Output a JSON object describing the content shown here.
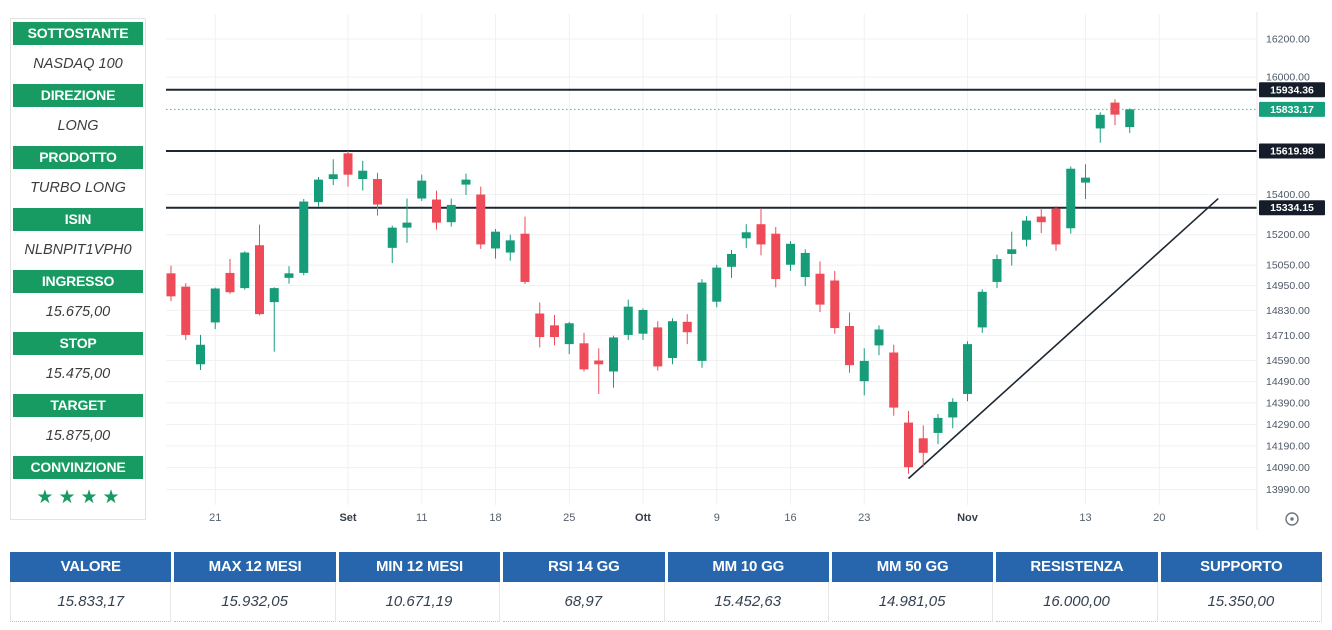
{
  "sidebar": {
    "rows": [
      {
        "label": "SOTTOSTANTE",
        "value": "NASDAQ 100"
      },
      {
        "label": "DIREZIONE",
        "value": "LONG"
      },
      {
        "label": "PRODOTTO",
        "value": "TURBO LONG"
      },
      {
        "label": "ISIN",
        "value": "NLBNPIT1VPH0"
      },
      {
        "label": "INGRESSO",
        "value": "15.675,00"
      },
      {
        "label": "STOP",
        "value": "15.475,00"
      },
      {
        "label": "TARGET",
        "value": "15.875,00"
      },
      {
        "label": "CONVINZIONE",
        "value": "★★★★",
        "type": "stars"
      }
    ]
  },
  "chart_data": {
    "type": "candlestick",
    "symbol": "NASDAQ 100",
    "scale": "log",
    "ylim": [
      13940,
      16250
    ],
    "grid": true,
    "ohlc": [
      [
        15010,
        15048,
        14875,
        14898
      ],
      [
        14945,
        14962,
        14688,
        14712
      ],
      [
        14572,
        14712,
        14545,
        14665
      ],
      [
        14772,
        14940,
        14740,
        14936
      ],
      [
        15012,
        15080,
        14910,
        14918
      ],
      [
        14938,
        15118,
        14930,
        15112
      ],
      [
        15148,
        15250,
        14806,
        14812
      ],
      [
        14870,
        14942,
        14632,
        14938
      ],
      [
        14988,
        15045,
        14960,
        15010
      ],
      [
        15012,
        15378,
        15000,
        15365
      ],
      [
        15362,
        15488,
        15340,
        15475
      ],
      [
        15478,
        15578,
        15448,
        15502
      ],
      [
        15608,
        15620,
        15440,
        15500
      ],
      [
        15478,
        15570,
        15420,
        15520
      ],
      [
        15478,
        15510,
        15295,
        15350
      ],
      [
        15135,
        15245,
        15060,
        15235
      ],
      [
        15235,
        15380,
        15160,
        15260
      ],
      [
        15380,
        15500,
        15368,
        15470
      ],
      [
        15375,
        15420,
        15225,
        15260
      ],
      [
        15262,
        15380,
        15240,
        15348
      ],
      [
        15450,
        15505,
        15398,
        15475
      ],
      [
        15400,
        15440,
        15130,
        15152
      ],
      [
        15132,
        15228,
        15082,
        15215
      ],
      [
        15112,
        15200,
        15072,
        15172
      ],
      [
        15205,
        15290,
        14958,
        14968
      ],
      [
        14815,
        14868,
        14652,
        14702
      ],
      [
        14758,
        14808,
        14662,
        14702
      ],
      [
        14668,
        14775,
        14620,
        14768
      ],
      [
        14672,
        14722,
        14538,
        14548
      ],
      [
        14590,
        14648,
        14432,
        14572
      ],
      [
        14538,
        14708,
        14462,
        14700
      ],
      [
        14712,
        14882,
        14688,
        14848
      ],
      [
        14718,
        14840,
        14688,
        14832
      ],
      [
        14748,
        14778,
        14542,
        14562
      ],
      [
        14602,
        14792,
        14572,
        14778
      ],
      [
        14775,
        14812,
        14668,
        14725
      ],
      [
        14588,
        14982,
        14555,
        14965
      ],
      [
        14872,
        15052,
        14845,
        15038
      ],
      [
        15042,
        15125,
        14988,
        15105
      ],
      [
        15182,
        15252,
        15135,
        15212
      ],
      [
        15252,
        15332,
        15098,
        15152
      ],
      [
        15205,
        15238,
        14942,
        14982
      ],
      [
        15052,
        15168,
        15022,
        15155
      ],
      [
        14992,
        15128,
        14948,
        15110
      ],
      [
        15008,
        15068,
        14822,
        14858
      ],
      [
        14975,
        15022,
        14718,
        14745
      ],
      [
        14755,
        14820,
        14532,
        14568
      ],
      [
        14492,
        14648,
        14425,
        14588
      ],
      [
        14662,
        14758,
        14615,
        14738
      ],
      [
        14628,
        14665,
        14330,
        14368
      ],
      [
        14298,
        14352,
        14062,
        14092
      ],
      [
        14225,
        14285,
        14092,
        14158
      ],
      [
        14250,
        14338,
        14198,
        14320
      ],
      [
        14322,
        14412,
        14272,
        14395
      ],
      [
        14432,
        14682,
        14398,
        14668
      ],
      [
        14748,
        14932,
        14722,
        14920
      ],
      [
        14968,
        15102,
        14938,
        15080
      ],
      [
        15105,
        15215,
        15048,
        15128
      ],
      [
        15175,
        15292,
        15142,
        15270
      ],
      [
        15290,
        15332,
        15208,
        15262
      ],
      [
        15330,
        15342,
        15122,
        15152
      ],
      [
        15232,
        15542,
        15205,
        15530
      ],
      [
        15460,
        15552,
        15378,
        15485
      ],
      [
        15735,
        15818,
        15662,
        15805
      ],
      [
        15868,
        15885,
        15752,
        15806
      ],
      [
        15742,
        15838,
        15712,
        15833.17
      ]
    ],
    "levels": [
      {
        "price": 15934.36,
        "label": "15934.36"
      },
      {
        "price": 15619.98,
        "label": "15619.98"
      },
      {
        "price": 15334.15,
        "label": "15334.15"
      }
    ],
    "current_price": {
      "value": 15833.17,
      "label": "15833.17"
    },
    "trendline": {
      "from_index": 50,
      "from_price": 14040,
      "to_index": 71,
      "to_price": 15380
    },
    "x_labels": [
      {
        "text": "21",
        "index": 3,
        "month": false
      },
      {
        "text": "Set",
        "index": 12,
        "month": true
      },
      {
        "text": "11",
        "index": 17,
        "month": false
      },
      {
        "text": "18",
        "index": 22,
        "month": false
      },
      {
        "text": "25",
        "index": 27,
        "month": false
      },
      {
        "text": "Ott",
        "index": 32,
        "month": true
      },
      {
        "text": "9",
        "index": 37,
        "month": false
      },
      {
        "text": "16",
        "index": 42,
        "month": false
      },
      {
        "text": "23",
        "index": 47,
        "month": false
      },
      {
        "text": "Nov",
        "index": 54,
        "month": true
      },
      {
        "text": "13",
        "index": 62,
        "month": false
      },
      {
        "text": "20",
        "index": 67,
        "month": false
      }
    ],
    "y_ticks": [
      "16200.00",
      "16000.00",
      "15400.00",
      "15200.00",
      "15050.00",
      "14950.00",
      "14830.00",
      "14710.00",
      "14590.00",
      "14490.00",
      "14390.00",
      "14290.00",
      "14190.00",
      "14090.00",
      "13990.00"
    ],
    "colors": {
      "up": "#169c78",
      "down": "#ee4a57",
      "level_line": "#1c2733",
      "level_tag": "#141d29",
      "current": "#17a07e",
      "current_line": "#3fbb9e",
      "grid": "#f0f1f2",
      "axis_text": "#4d5866",
      "trendline": "#1c2733"
    }
  },
  "table": {
    "columns": [
      {
        "header": "VALORE",
        "value": "15.833,17"
      },
      {
        "header": "MAX 12 MESI",
        "value": "15.932,05"
      },
      {
        "header": "MIN 12 MESI",
        "value": "10.671,19"
      },
      {
        "header": "RSI 14 GG",
        "value": "68,97"
      },
      {
        "header": "MM 10 GG",
        "value": "15.452,63"
      },
      {
        "header": "MM 50 GG",
        "value": "14.981,05"
      },
      {
        "header": "RESISTENZA",
        "value": "16.000,00"
      },
      {
        "header": "SUPPORTO",
        "value": "15.350,00"
      }
    ]
  },
  "icons": {
    "scroll_to_realtime": "◎"
  }
}
